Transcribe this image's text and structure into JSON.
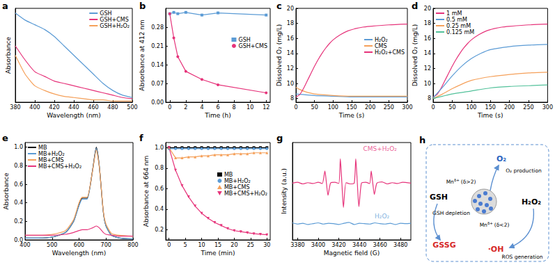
{
  "chart_data": [
    {
      "panel": "a",
      "type": "line",
      "xlabel": "Wavelength (nm)",
      "ylabel": "Absorbance",
      "xlim": [
        380,
        500
      ],
      "xticks": [
        380,
        400,
        420,
        440,
        460,
        480,
        500
      ],
      "ylim": [
        0,
        0.4
      ],
      "tick_labels": "x",
      "legend": "upper right",
      "x": [
        380,
        390,
        400,
        410,
        420,
        430,
        440,
        450,
        460,
        470,
        480,
        490,
        500
      ],
      "series": [
        {
          "name": "GSH",
          "color": "#5b9bd5",
          "values": [
            0.38,
            0.35,
            0.33,
            0.31,
            0.28,
            0.24,
            0.2,
            0.16,
            0.12,
            0.08,
            0.05,
            0.03,
            0.02
          ]
        },
        {
          "name": "GSH+CMS",
          "color": "#e6337a",
          "values": [
            0.24,
            0.18,
            0.13,
            0.11,
            0.09,
            0.08,
            0.07,
            0.06,
            0.05,
            0.04,
            0.03,
            0.02,
            0.015
          ]
        },
        {
          "name": "GSH+H₂O₂",
          "color": "#f5a05a",
          "values": [
            0.2,
            0.12,
            0.07,
            0.05,
            0.035,
            0.025,
            0.02,
            0.015,
            0.01,
            0.01,
            0.005,
            0.005,
            0.005
          ]
        }
      ]
    },
    {
      "panel": "b",
      "type": "line",
      "xlabel": "Time (h)",
      "ylabel": "Absorbance at 412 nm",
      "xlim": [
        -0.5,
        12.5
      ],
      "xticks": [
        0,
        2,
        4,
        6,
        8,
        10,
        12
      ],
      "ylim": [
        0,
        0.35
      ],
      "yticks": [
        {
          "value": 0,
          "label": "0.00"
        },
        0.07,
        0.14,
        0.21,
        0.28
      ],
      "legend": "center right",
      "x": [
        0,
        0.5,
        1,
        2,
        4,
        6,
        12
      ],
      "series": [
        {
          "name": "GSH",
          "color": "#5b9bd5",
          "marker": "square",
          "values": [
            0.33,
            0.335,
            0.33,
            0.335,
            0.325,
            0.333,
            0.325
          ]
        },
        {
          "name": "GSH+CMS",
          "color": "#e6337a",
          "marker": "circle",
          "values": [
            0.33,
            0.24,
            0.17,
            0.115,
            0.085,
            0.065,
            0.035
          ]
        }
      ]
    },
    {
      "panel": "c",
      "type": "line",
      "xlabel": "Time (s)",
      "ylabel": "Dissolved O₂ (mg/L)",
      "xlim": [
        0,
        300
      ],
      "xticks": [
        0,
        50,
        100,
        150,
        200,
        250,
        300
      ],
      "ylim": [
        7.5,
        20
      ],
      "yticks": [
        8,
        10,
        12,
        14,
        16,
        18,
        20
      ],
      "legend": "center right",
      "series": [
        {
          "name": "H₂O₂",
          "color": "#5b9bd5",
          "x": [
            0,
            50,
            100,
            150,
            200,
            250,
            300
          ],
          "values": [
            8.6,
            8.4,
            8.3,
            8.2,
            8.2,
            8.2,
            8.2
          ]
        },
        {
          "name": "CMS",
          "color": "#f5a05a",
          "x": [
            0,
            10,
            25,
            50,
            100,
            150,
            200,
            250,
            300
          ],
          "values": [
            9.5,
            9.2,
            8.9,
            8.6,
            8.4,
            8.3,
            8.3,
            8.3,
            8.3
          ]
        },
        {
          "name": "H₂O₂+CMS",
          "color": "#e6337a",
          "x": [
            0,
            10,
            20,
            30,
            40,
            50,
            60,
            70,
            80,
            90,
            100,
            120,
            140,
            160,
            180,
            200,
            250,
            300
          ],
          "values": [
            8.2,
            8.5,
            9.3,
            10.3,
            11.3,
            12.3,
            13.2,
            14,
            14.7,
            15.3,
            15.8,
            16.5,
            17,
            17.3,
            17.5,
            17.6,
            17.8,
            17.9
          ]
        }
      ]
    },
    {
      "panel": "d",
      "type": "line",
      "xlabel": "Time (s)",
      "ylabel": "Dissolved O₂ (mg/L)",
      "xlim": [
        0,
        300
      ],
      "xticks": [
        0,
        50,
        100,
        150,
        200,
        250,
        300
      ],
      "ylim": [
        7.5,
        20
      ],
      "yticks": [
        8,
        10,
        12,
        14,
        16,
        18,
        20
      ],
      "legend": "upper left",
      "series": [
        {
          "name": "1 mM",
          "color": "#e6337a",
          "x": [
            0,
            10,
            20,
            30,
            40,
            50,
            60,
            70,
            80,
            90,
            100,
            120,
            140,
            160,
            180,
            200,
            250,
            300
          ],
          "values": [
            8.2,
            8.5,
            9.3,
            10.3,
            11.3,
            12.3,
            13.2,
            14,
            14.7,
            15.3,
            15.8,
            16.5,
            17,
            17.3,
            17.5,
            17.6,
            17.8,
            17.9
          ]
        },
        {
          "name": "0.5 mM",
          "color": "#5b9bd5",
          "x": [
            0,
            25,
            50,
            75,
            100,
            125,
            150,
            200,
            250,
            300
          ],
          "values": [
            8.1,
            9.5,
            11,
            12.3,
            13.3,
            14,
            14.5,
            14.9,
            15.1,
            15.2
          ]
        },
        {
          "name": "0.25 mM",
          "color": "#f5a05a",
          "x": [
            0,
            25,
            50,
            75,
            100,
            150,
            200,
            250,
            300
          ],
          "values": [
            8,
            8.6,
            9.3,
            9.9,
            10.4,
            10.9,
            11.2,
            11.4,
            11.5
          ]
        },
        {
          "name": "0.125 mM",
          "color": "#52c19a",
          "x": [
            0,
            25,
            50,
            100,
            150,
            200,
            250,
            300
          ],
          "values": [
            8,
            8.3,
            8.6,
            9,
            9.4,
            9.6,
            9.7,
            9.8
          ]
        }
      ]
    },
    {
      "panel": "e",
      "type": "line",
      "xlabel": "Wavelength (nm)",
      "ylabel": "Absorbance",
      "xlim": [
        400,
        800
      ],
      "xticks": [
        400,
        500,
        600,
        700,
        800
      ],
      "ylim": [
        0,
        1.05
      ],
      "yticks": [
        {
          "value": 0,
          "label": "0.0"
        },
        0.2,
        0.4,
        0.6,
        0.8,
        {
          "value": 1,
          "label": "1.0"
        }
      ],
      "legend": "upper left",
      "x": [
        400,
        450,
        500,
        550,
        580,
        600,
        612,
        630,
        650,
        664,
        675,
        690,
        700,
        720,
        750,
        800
      ],
      "series": [
        {
          "name": "MB",
          "color": "#000000",
          "values": [
            0.02,
            0.02,
            0.03,
            0.08,
            0.2,
            0.38,
            0.45,
            0.45,
            0.75,
            1.0,
            0.8,
            0.3,
            0.15,
            0.05,
            0.02,
            0.01
          ]
        },
        {
          "name": "MB+H₂O₂",
          "color": "#5b9bd5",
          "values": [
            0.02,
            0.02,
            0.03,
            0.08,
            0.2,
            0.37,
            0.44,
            0.44,
            0.74,
            0.99,
            0.79,
            0.3,
            0.15,
            0.05,
            0.02,
            0.01
          ]
        },
        {
          "name": "MB+CMS",
          "color": "#f5a05a",
          "values": [
            0.05,
            0.05,
            0.06,
            0.1,
            0.22,
            0.4,
            0.46,
            0.46,
            0.74,
            0.97,
            0.79,
            0.31,
            0.17,
            0.07,
            0.05,
            0.04
          ]
        },
        {
          "name": "MB+CMS+H₂O₂",
          "color": "#e6337a",
          "values": [
            0.05,
            0.05,
            0.05,
            0.06,
            0.08,
            0.1,
            0.11,
            0.11,
            0.13,
            0.15,
            0.13,
            0.08,
            0.06,
            0.05,
            0.04,
            0.04
          ]
        }
      ]
    },
    {
      "panel": "f",
      "type": "line",
      "xlabel": "Time (min)",
      "ylabel": "Absorbance at 664 nm",
      "xlim": [
        -1,
        31
      ],
      "xticks": [
        0,
        5,
        10,
        15,
        20,
        25,
        30
      ],
      "ylim": [
        0.1,
        1.05
      ],
      "yticks": [
        0.2,
        0.4,
        0.6,
        0.8,
        {
          "value": 1,
          "label": "1.0"
        }
      ],
      "legend": "center right",
      "x": [
        0,
        2,
        4,
        6,
        8,
        10,
        12,
        14,
        16,
        18,
        20,
        22,
        24,
        26,
        28,
        30
      ],
      "series": [
        {
          "name": "MB",
          "color": "#000000",
          "marker": "square",
          "values": [
            1.0,
            1.0,
            1.0,
            1.0,
            1.0,
            1.0,
            1.0,
            1.0,
            1.0,
            1.0,
            1.0,
            1.0,
            1.0,
            1.0,
            1.0,
            1.0
          ]
        },
        {
          "name": "MB+H₂O₂",
          "color": "#5b9bd5",
          "marker": "circle",
          "values": [
            0.99,
            0.99,
            0.99,
            0.99,
            0.99,
            0.99,
            0.99,
            0.99,
            0.99,
            0.99,
            0.99,
            0.99,
            0.99,
            0.99,
            0.99,
            0.99
          ]
        },
        {
          "name": "MB+CMS",
          "color": "#f5a05a",
          "marker": "triangle",
          "values": [
            1.0,
            0.9,
            0.9,
            0.91,
            0.91,
            0.92,
            0.92,
            0.93,
            0.93,
            0.93,
            0.94,
            0.94,
            0.94,
            0.95,
            0.95,
            0.95
          ]
        },
        {
          "name": "MB+CMS+H₂O₂",
          "color": "#e6337a",
          "marker": "triangle_down",
          "values": [
            1.0,
            0.78,
            0.63,
            0.52,
            0.43,
            0.36,
            0.31,
            0.27,
            0.24,
            0.21,
            0.19,
            0.18,
            0.17,
            0.16,
            0.155,
            0.15
          ]
        }
      ]
    },
    {
      "panel": "g",
      "type": "line",
      "xlabel": "Magnetic field (G)",
      "ylabel": "Intensity (a.u.)",
      "xlim": [
        3375,
        3490
      ],
      "xticks": [
        3380,
        3400,
        3420,
        3440,
        3460,
        3480
      ],
      "ylim": [
        -0.4,
        2.0
      ],
      "tick_labels": "x",
      "series": [
        {
          "color": "#e6337a",
          "x": [
            3375,
            3380,
            3385,
            3390,
            3395,
            3400,
            3404,
            3406.5,
            3408,
            3409.5,
            3412,
            3416,
            3420,
            3421.5,
            3423,
            3424.5,
            3427,
            3431,
            3435,
            3436.5,
            3438,
            3439.5,
            3442,
            3446,
            3450,
            3451.5,
            3453,
            3454.5,
            3457,
            3462,
            3467,
            3472,
            3477,
            3482,
            3490
          ],
          "values": [
            1.0,
            1.02,
            0.98,
            1.01,
            0.99,
            1.02,
            0.99,
            1.3,
            1.0,
            0.7,
            1.0,
            1.02,
            0.99,
            1.6,
            1.0,
            0.4,
            1.01,
            0.98,
            1.0,
            1.6,
            1.0,
            0.42,
            1.0,
            1.02,
            0.99,
            1.3,
            1.0,
            0.72,
            1.0,
            1.03,
            0.98,
            1.01,
            0.99,
            1.02,
            1.0
          ]
        },
        {
          "color": "#5b9bd5",
          "x": [
            3375,
            3380,
            3385,
            3390,
            3395,
            3400,
            3405,
            3410,
            3415,
            3420,
            3425,
            3430,
            3435,
            3440,
            3445,
            3450,
            3455,
            3460,
            3465,
            3470,
            3475,
            3480,
            3485,
            3490
          ],
          "values": [
            0.02,
            -0.01,
            0.01,
            -0.02,
            0.0,
            0.02,
            -0.01,
            0.01,
            0.0,
            -0.02,
            0.01,
            0.03,
            -0.02,
            0.01,
            0.0,
            -0.01,
            0.02,
            0.0,
            -0.01,
            0.01,
            -0.02,
            0.01,
            0.0,
            0.01
          ]
        }
      ],
      "annotations": [
        {
          "text": "CMS+H₂O₂",
          "x": 3460,
          "y": 1.85,
          "color": "#e6337a"
        },
        {
          "text": "H₂O₂",
          "x": 3462,
          "y": 0.18,
          "color": "#5b9bd5"
        }
      ]
    }
  ],
  "diagram": {
    "panel": "h",
    "gsh": "GSH",
    "gssg": "GSSG",
    "gsh_depletion": "GSH depletion",
    "o2": "O₂",
    "o2_production": "O₂ production",
    "h2o2": "H₂O₂",
    "oh": "·OH",
    "ros_generation": "ROS generation",
    "mn_oxidized": {
      "base": "Mn",
      "sup": "δ+",
      "note": "(δ>2)"
    },
    "mn_reduced": {
      "base": "Mn",
      "sup": "δ+",
      "note": "(δ<2)"
    }
  }
}
